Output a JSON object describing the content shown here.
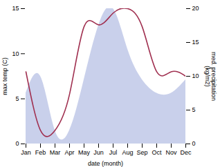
{
  "chart_data": {
    "type": "line",
    "categories": [
      "Jan",
      "Feb",
      "Mar",
      "Apr",
      "May",
      "Jun",
      "Jul",
      "Aug",
      "Sep",
      "Oct",
      "Nov",
      "Dec"
    ],
    "series": [
      {
        "type": "area",
        "axis": "y2",
        "color": "#c0c8e8",
        "values": [
          7.5,
          10.0,
          2.0,
          2.0,
          9.5,
          17.5,
          20.0,
          14.0,
          9.5,
          7.5,
          7.5,
          9.5
        ]
      },
      {
        "type": "line",
        "color": "#a03050",
        "values": [
          8.0,
          1.5,
          1.5,
          5.5,
          13.0,
          13.2,
          14.5,
          15.0,
          13.0,
          8.0,
          8.0,
          7.5
        ]
      }
    ],
    "xlabel": "date (month)",
    "ylabel": "max temp (C)",
    "y2label": "med. precipitation\n(kg/m2)",
    "ylim": [
      0,
      15
    ],
    "yticks": [
      0,
      5,
      10,
      15
    ],
    "y2lim": [
      0,
      20
    ],
    "y2ticks": [
      0,
      5,
      10,
      15,
      20
    ]
  }
}
